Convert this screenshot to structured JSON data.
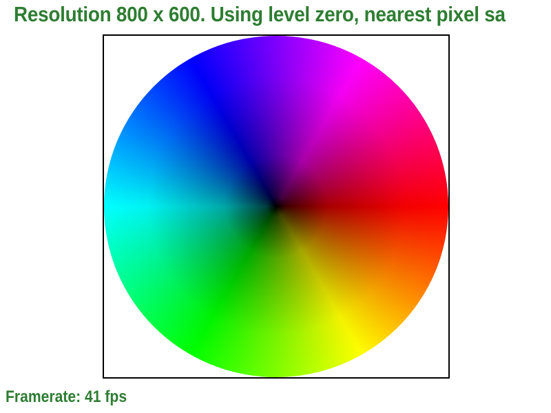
{
  "header": {
    "title": "Resolution 800 x 600. Using level zero, nearest pixel sa"
  },
  "viewport": {
    "graphic": "hsv-color-wheel"
  },
  "status": {
    "framerate_text": "Framerate: 41 fps"
  },
  "colors": {
    "text": "#2e7d32",
    "border": "#000000",
    "background": "#ffffff"
  }
}
